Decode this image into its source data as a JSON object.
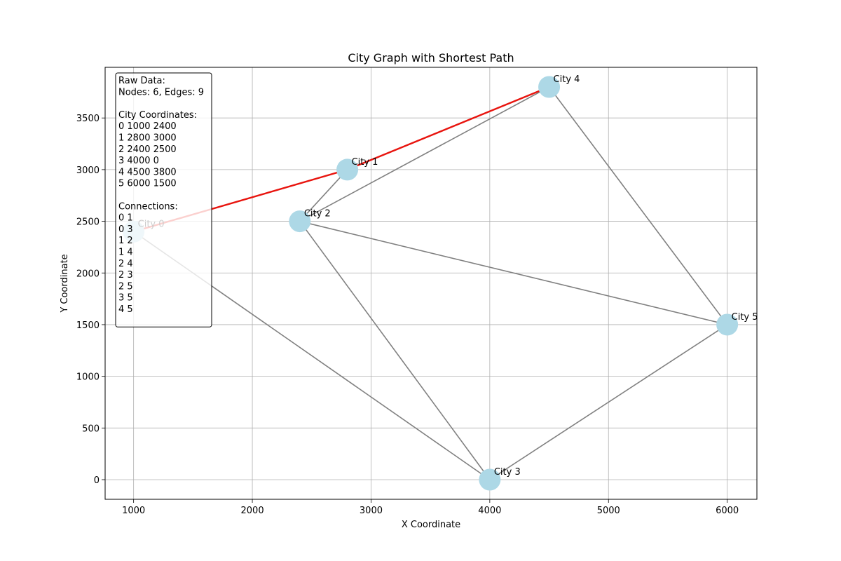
{
  "chart_data": {
    "type": "scatter",
    "title": "City Graph with Shortest Path",
    "xlabel": "X Coordinate",
    "ylabel": "Y Coordinate",
    "xlim": [
      760,
      6250
    ],
    "ylim": [
      -190,
      3990
    ],
    "x_ticks": [
      1000,
      2000,
      3000,
      4000,
      5000,
      6000
    ],
    "y_ticks": [
      0,
      500,
      1000,
      1500,
      2000,
      2500,
      3000,
      3500
    ],
    "grid": true,
    "cities": [
      {
        "id": 0,
        "label": "City 0",
        "x": 1000,
        "y": 2400
      },
      {
        "id": 1,
        "label": "City 1",
        "x": 2800,
        "y": 3000
      },
      {
        "id": 2,
        "label": "City 2",
        "x": 2400,
        "y": 2500
      },
      {
        "id": 3,
        "label": "City 3",
        "x": 4000,
        "y": 0
      },
      {
        "id": 4,
        "label": "City 4",
        "x": 4500,
        "y": 3800
      },
      {
        "id": 5,
        "label": "City 5",
        "x": 6000,
        "y": 1500
      }
    ],
    "edges": [
      [
        0,
        1
      ],
      [
        0,
        3
      ],
      [
        1,
        2
      ],
      [
        1,
        4
      ],
      [
        2,
        4
      ],
      [
        2,
        3
      ],
      [
        2,
        5
      ],
      [
        3,
        5
      ],
      [
        4,
        5
      ]
    ],
    "shortest_path": [
      0,
      1,
      4
    ],
    "colors": {
      "node": "#add8e6",
      "edge": "#808080",
      "path": "#e8140e",
      "grid": "#b0b0b0"
    },
    "info_box": {
      "position": "top-left",
      "lines": [
        "Raw Data:",
        "Nodes: 6, Edges: 9",
        "",
        "City Coordinates:",
        "0 1000 2400",
        "1 2800 3000",
        "2 2400 2500",
        "3 4000 0",
        "4 4500 3800",
        "5 6000 1500",
        "",
        "Connections:",
        "0 1",
        "0 3",
        "1 2",
        "1 4",
        "2 4",
        "2 3",
        "2 5",
        "3 5",
        "4 5"
      ]
    }
  }
}
